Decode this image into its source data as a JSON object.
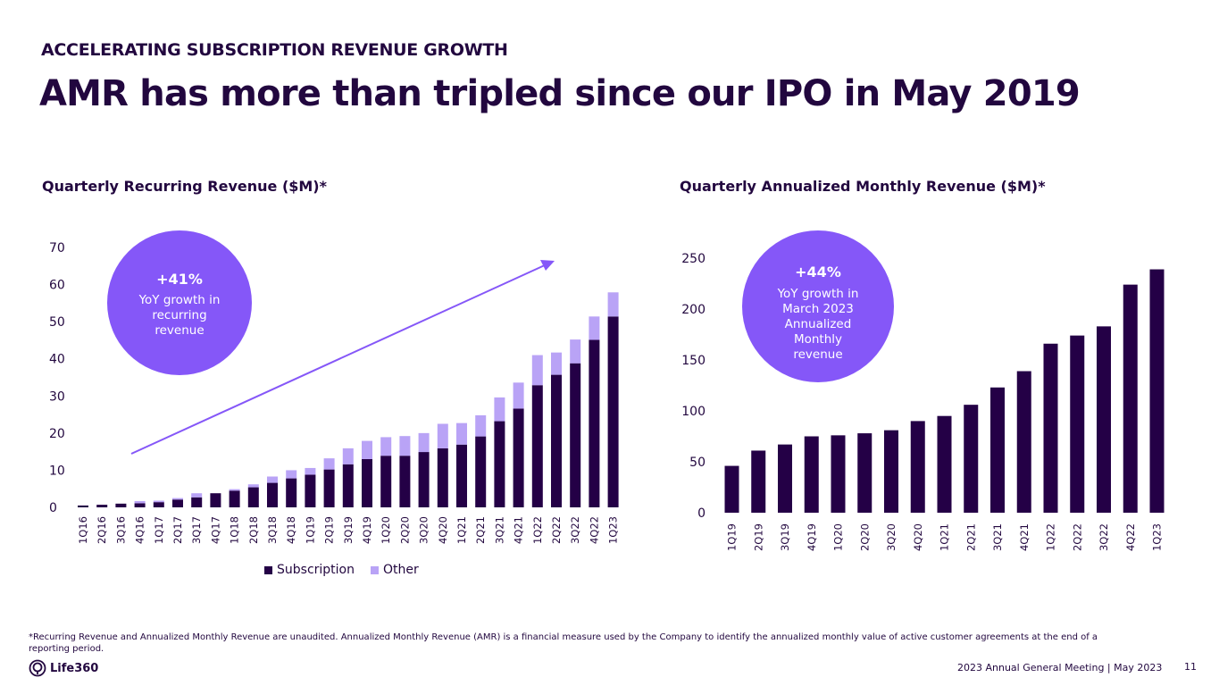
{
  "header": {
    "eyebrow": "ACCELERATING SUBSCRIPTION REVENUE GROWTH",
    "headline": "AMR has more than tripled since our IPO in May 2019"
  },
  "colors": {
    "dark": "#240046",
    "light": "#b9a3f6",
    "accent": "#8557f8",
    "text": "#22073f"
  },
  "callouts": {
    "left": {
      "value": "+41%",
      "lines": [
        "YoY growth in",
        "recurring",
        "revenue"
      ]
    },
    "right": {
      "value": "+44%",
      "lines": [
        "YoY growth in",
        "March 2023",
        "Annualized",
        "Monthly",
        "revenue"
      ]
    }
  },
  "legend": {
    "subscription": "Subscription",
    "other": "Other"
  },
  "chart_data": [
    {
      "type": "bar",
      "stacked": true,
      "title": "Quarterly Recurring Revenue ($M)*",
      "xlabel": "",
      "ylabel": "",
      "ylim": [
        0,
        70
      ],
      "yticks": [
        0,
        10,
        20,
        30,
        40,
        50,
        60,
        70
      ],
      "grid": false,
      "legend_position": "bottom",
      "categories": [
        "1Q16",
        "2Q16",
        "3Q16",
        "4Q16",
        "1Q17",
        "2Q17",
        "3Q17",
        "4Q17",
        "1Q18",
        "2Q18",
        "3Q18",
        "4Q18",
        "1Q19",
        "2Q19",
        "3Q19",
        "4Q19",
        "1Q20",
        "2Q20",
        "3Q20",
        "4Q20",
        "1Q21",
        "2Q21",
        "3Q21",
        "4Q21",
        "1Q22",
        "2Q22",
        "3Q22",
        "4Q22",
        "1Q23"
      ],
      "series": [
        {
          "name": "Subscription",
          "values": [
            0.5,
            0.7,
            1.0,
            1.1,
            1.4,
            2.1,
            2.7,
            3.8,
            4.5,
            5.4,
            6.6,
            7.8,
            8.8,
            10.2,
            11.6,
            13.0,
            13.9,
            13.9,
            14.9,
            15.9,
            16.9,
            19.1,
            23.2,
            26.6,
            32.9,
            35.7,
            38.8,
            45.1,
            51.4
          ]
        },
        {
          "name": "Other",
          "values": [
            0.0,
            0.0,
            0.0,
            0.6,
            0.4,
            0.4,
            1.1,
            0.0,
            0.4,
            0.8,
            1.7,
            2.2,
            1.8,
            3.0,
            4.3,
            4.9,
            5.0,
            5.3,
            5.1,
            6.6,
            5.8,
            5.7,
            6.4,
            7.0,
            8.1,
            6.0,
            6.4,
            6.3,
            6.5
          ]
        }
      ],
      "annotation": {
        "type": "trend-arrow",
        "label": "+41% YoY growth in recurring revenue"
      }
    },
    {
      "type": "bar",
      "title": "Quarterly Annualized Monthly Revenue ($M)*",
      "xlabel": "",
      "ylabel": "",
      "ylim": [
        0,
        250
      ],
      "yticks": [
        0,
        50,
        100,
        150,
        200,
        250
      ],
      "grid": false,
      "categories": [
        "1Q19",
        "2Q19",
        "3Q19",
        "4Q19",
        "1Q20",
        "2Q20",
        "3Q20",
        "4Q20",
        "1Q21",
        "2Q21",
        "3Q21",
        "4Q21",
        "1Q22",
        "2Q22",
        "3Q22",
        "4Q22",
        "1Q23"
      ],
      "values": [
        46,
        61,
        67,
        75,
        76,
        78,
        81,
        90,
        95,
        106,
        123,
        139,
        166,
        174,
        183,
        224,
        239
      ],
      "annotation": {
        "label": "+44% YoY growth in March 2023 Annualized Monthly revenue"
      }
    }
  ],
  "footer": {
    "footnote": "*Recurring Revenue and Annualized Monthly Revenue are unaudited. Annualized Monthly Revenue (AMR) is a financial measure used by the Company to identify the annualized monthly value of active customer agreements at the end of a reporting period.",
    "logo_text": "Life360",
    "meeting": "2023 Annual General Meeting  | May 2023",
    "page_number": "11"
  }
}
